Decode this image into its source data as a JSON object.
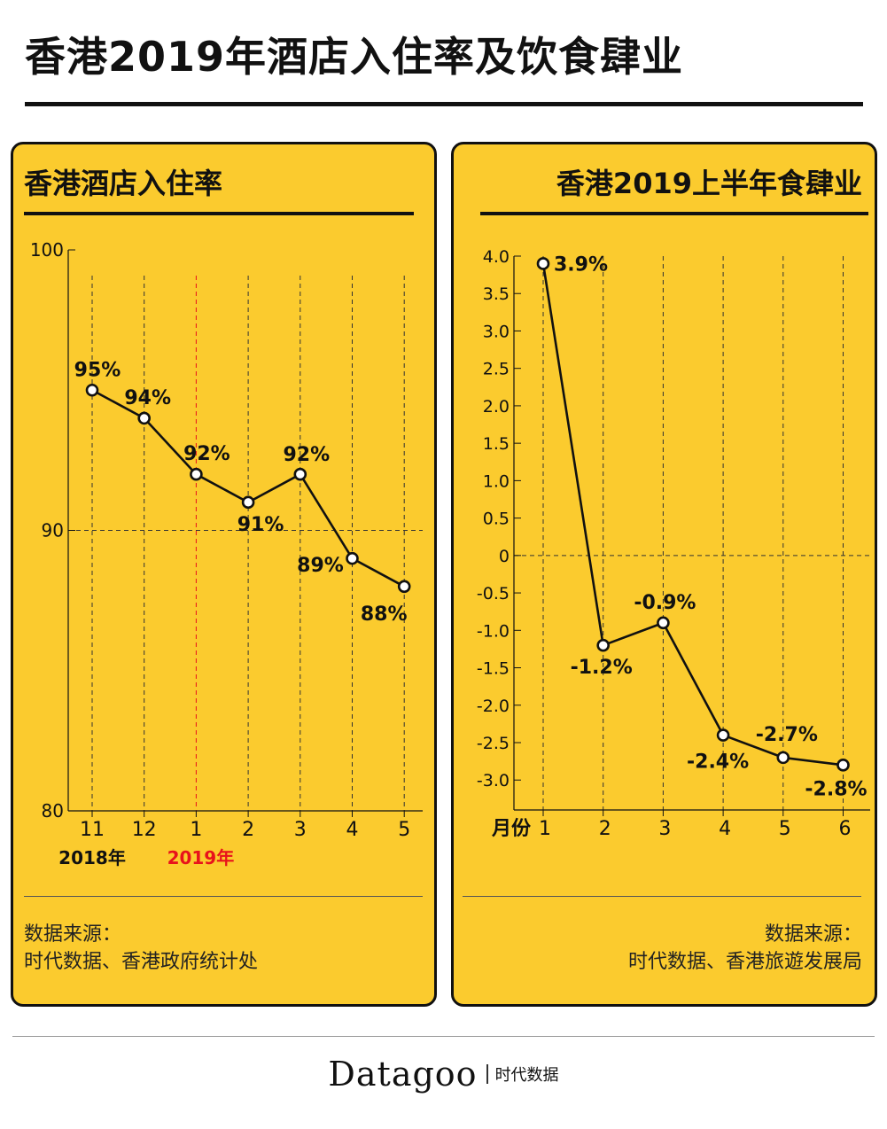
{
  "title": "香港2019年酒店入住率及饮食肆业",
  "left": {
    "title": "香港酒店入住率",
    "source_label": "数据来源：",
    "source_text": "时代数据、香港政府统计处"
  },
  "right": {
    "title": "香港2019上半年食肆业",
    "source_label": "数据来源：",
    "source_text": "时代数据、香港旅遊发展局"
  },
  "brand": {
    "en": "Datagoo",
    "cn": "时代数据"
  },
  "chart_data": [
    {
      "type": "line",
      "title": "香港酒店入住率",
      "categories": [
        "11",
        "12",
        "1",
        "2",
        "3",
        "4",
        "5"
      ],
      "values": [
        95,
        94,
        92,
        91,
        92,
        89,
        88
      ],
      "data_labels": [
        "95%",
        "94%",
        "92%",
        "91%",
        "92%",
        "89%",
        "88%"
      ],
      "year_labels": [
        {
          "text": "2018年",
          "category": "11",
          "color": "#111111"
        },
        {
          "text": "2019年",
          "category": "1",
          "color": "#E8121B"
        }
      ],
      "yticks": [
        "80",
        "90",
        "100"
      ],
      "ylim": [
        80,
        100
      ],
      "highlight_category": "1",
      "highlight_color": "#E8121B",
      "grid": "dashed vertical lines, dashed line at 90"
    },
    {
      "type": "line",
      "title": "香港2019上半年食肆业",
      "xlabel": "月份",
      "categories": [
        "1",
        "2",
        "3",
        "4",
        "5",
        "6"
      ],
      "values": [
        3.9,
        -1.2,
        -0.9,
        -2.4,
        -2.7,
        -2.8
      ],
      "data_labels": [
        "3.9%",
        "-1.2%",
        "-0.9%",
        "-2.4%",
        "-2.7%",
        "-2.8%"
      ],
      "yticks": [
        "4.0",
        "3.5",
        "3.0",
        "2.5",
        "2.0",
        "1.5",
        "1.0",
        "0.5",
        "0",
        "-0.5",
        "-1.0",
        "-1.5",
        "-2.0",
        "-2.5",
        "-3.0"
      ],
      "ylim": [
        -3.4,
        4.0
      ],
      "grid": "dashed vertical lines, dashed line at 0"
    }
  ],
  "colors": {
    "panel_background": "#FBCB2E",
    "line": "#111111",
    "marker_fill": "#FFFFFF",
    "highlight": "#E8121B"
  }
}
